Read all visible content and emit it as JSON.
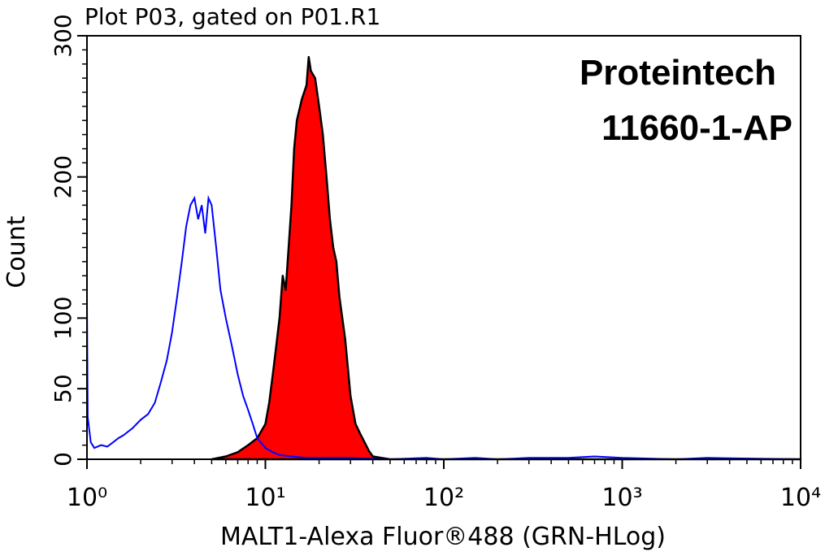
{
  "chart_data": {
    "type": "histogram-overlay",
    "title": "Plot P03, gated on P01.R1",
    "x_label": "MALT1-Alexa Fluor®488 (GRN-HLog)",
    "y_label": "Count",
    "annotations": [
      "Proteintech",
      "11660-1-AP"
    ],
    "x_scale": "log",
    "xlim": [
      1,
      10000
    ],
    "xticks": [
      {
        "value": 1,
        "label": "10⁰"
      },
      {
        "value": 10,
        "label": "10¹"
      },
      {
        "value": 100,
        "label": "10²"
      },
      {
        "value": 1000,
        "label": "10³"
      },
      {
        "value": 10000,
        "label": "10⁴"
      }
    ],
    "ylim": [
      0,
      300
    ],
    "yticks": [
      0,
      50,
      100,
      200,
      300
    ],
    "series": [
      {
        "color": "#ff0000",
        "line_color": "#000000",
        "filled": true,
        "x": [
          5,
          6,
          7,
          8,
          9,
          10,
          10.5,
          11,
          11.5,
          12,
          12.5,
          13,
          13.5,
          14,
          14.5,
          15,
          16,
          17,
          17.5,
          18,
          19,
          20,
          21,
          22,
          23,
          24,
          25,
          26,
          28,
          30,
          32,
          34,
          36,
          38,
          40,
          45,
          50,
          100,
          1000,
          10000
        ],
        "values": [
          0,
          2,
          5,
          10,
          15,
          25,
          40,
          60,
          80,
          100,
          130,
          120,
          150,
          180,
          220,
          240,
          255,
          265,
          285,
          275,
          270,
          250,
          230,
          200,
          170,
          150,
          140,
          115,
          85,
          45,
          25,
          18,
          12,
          6,
          2,
          1,
          0,
          0,
          0,
          0
        ]
      },
      {
        "color": "#0000ff",
        "filled": false,
        "x": [
          1.0,
          1.01,
          1.05,
          1.1,
          1.2,
          1.3,
          1.4,
          1.5,
          1.6,
          1.8,
          2.0,
          2.2,
          2.4,
          2.6,
          2.8,
          3.0,
          3.2,
          3.4,
          3.6,
          3.8,
          4.0,
          4.2,
          4.4,
          4.6,
          4.8,
          5.0,
          5.3,
          5.6,
          6.0,
          6.5,
          7.0,
          7.5,
          8.0,
          8.5,
          9.0,
          10,
          11,
          12,
          14,
          17,
          20,
          30,
          50,
          80,
          100,
          150,
          200,
          300,
          500,
          700,
          1000,
          2000,
          3000,
          10000
        ],
        "values": [
          110,
          30,
          12,
          8,
          10,
          9,
          12,
          15,
          17,
          22,
          28,
          32,
          40,
          55,
          70,
          90,
          115,
          140,
          165,
          180,
          185,
          170,
          180,
          160,
          185,
          180,
          150,
          120,
          100,
          80,
          60,
          45,
          35,
          25,
          15,
          8,
          5,
          3,
          2,
          1,
          1,
          1,
          0,
          1,
          0,
          1,
          0,
          1,
          1,
          2,
          1,
          0,
          1,
          0
        ]
      }
    ]
  }
}
